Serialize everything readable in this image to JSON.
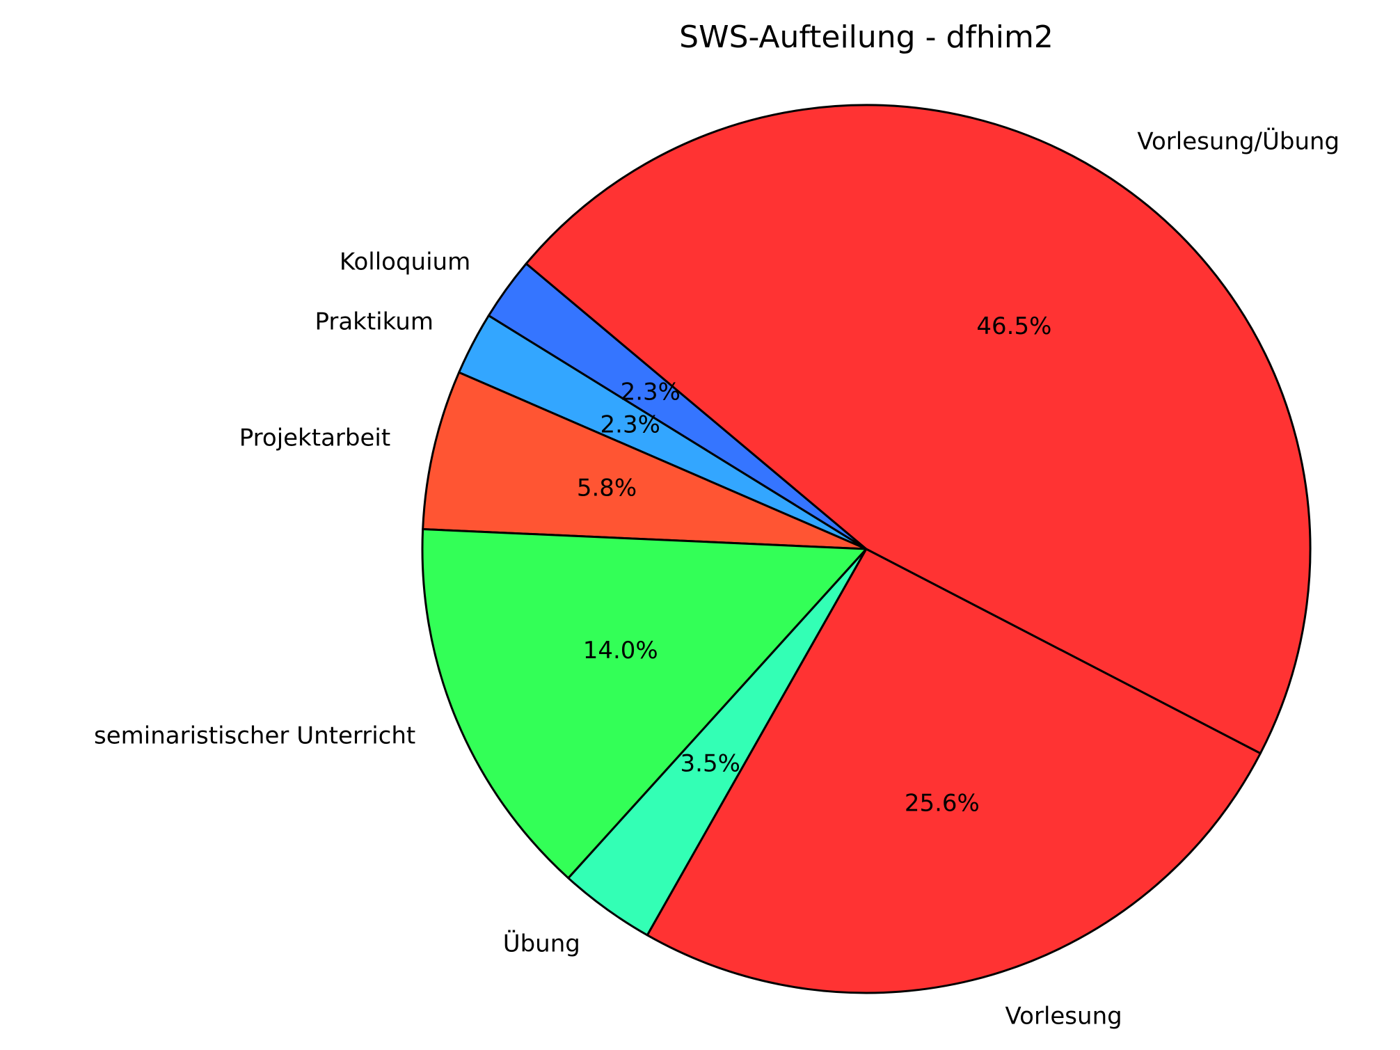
{
  "chart_data": {
    "type": "pie",
    "title": "SWS-Aufteilung - dfhim2",
    "categories": [
      "Kolloquium",
      "Praktikum",
      "Projektarbeit",
      "seminaristischer Unterricht",
      "Übung",
      "Vorlesung",
      "Vorlesung/Übung"
    ],
    "values": [
      2.3,
      2.3,
      5.8,
      14.0,
      3.5,
      25.6,
      46.5
    ],
    "value_labels": [
      "2.3%",
      "2.3%",
      "5.8%",
      "14.0%",
      "3.5%",
      "25.6%",
      "46.5%"
    ],
    "colors": [
      "#3575ff",
      "#33a6ff",
      "#ff5533",
      "#33ff57",
      "#33ffb5",
      "#ff3333",
      "#ff3333"
    ]
  }
}
